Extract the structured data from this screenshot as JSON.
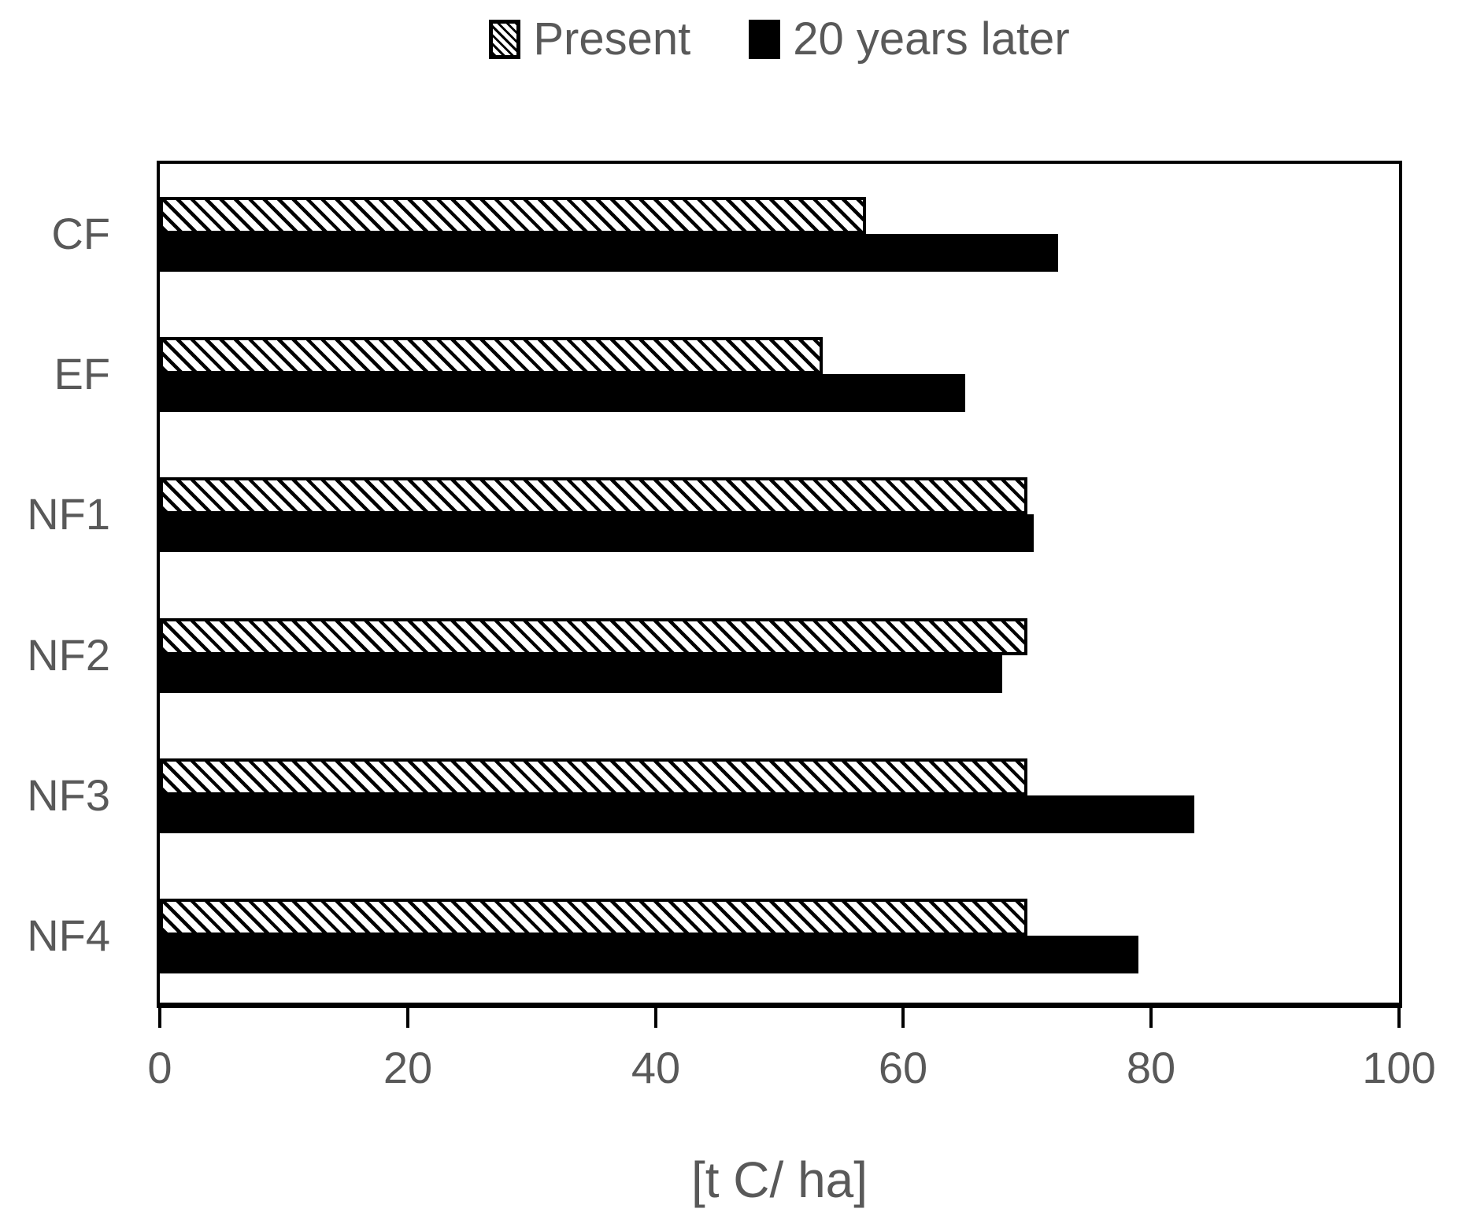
{
  "chart_data": {
    "type": "bar",
    "orientation": "horizontal",
    "title": "",
    "xlabel": "[t C/ ha]",
    "ylabel": "",
    "xlim": [
      0,
      100
    ],
    "xticks": [
      0,
      20,
      40,
      60,
      80,
      100
    ],
    "grid": false,
    "legend_position": "top",
    "categories": [
      "CF",
      "EF",
      "NF1",
      "NF2",
      "NF3",
      "NF4"
    ],
    "series": [
      {
        "name": "Present",
        "style": "hatched",
        "values": [
          57,
          53.5,
          70,
          70,
          70,
          70
        ]
      },
      {
        "name": "20 years later",
        "style": "solid",
        "values": [
          72.5,
          65,
          70.5,
          68,
          83.5,
          79
        ]
      }
    ]
  },
  "colors": {
    "bar_fill": "#000000",
    "hatch_stripe": "#000000",
    "text": "#595959",
    "axis": "#000000",
    "background": "#ffffff"
  }
}
